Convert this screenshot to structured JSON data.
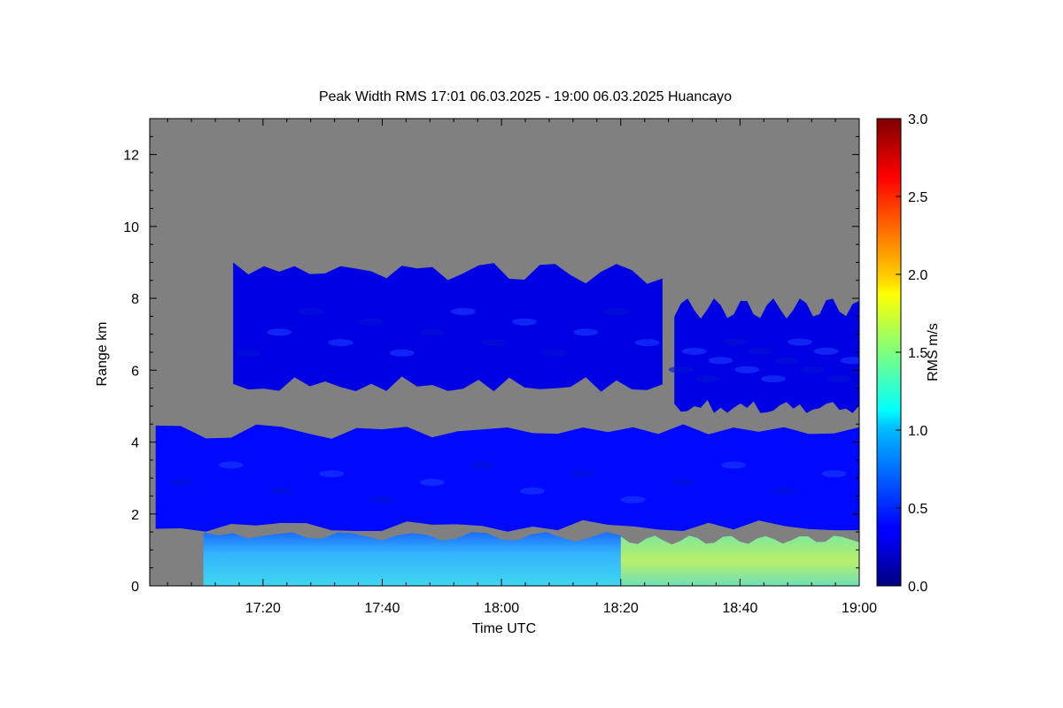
{
  "chart_data": {
    "type": "heatmap",
    "title": "Peak Width RMS   17:01 06.03.2025 - 19:00 06.03.2025 Huancayo",
    "xlabel": "Time UTC",
    "ylabel": "Range km",
    "colorbar_label": "RMS m/s",
    "x_ticks": [
      "17:20",
      "17:40",
      "18:00",
      "18:20",
      "18:40",
      "19:00"
    ],
    "x_tick_minutes": [
      20,
      40,
      60,
      80,
      100,
      120
    ],
    "xlim_minutes_after_1700": [
      1,
      120
    ],
    "y_ticks": [
      0,
      2,
      4,
      6,
      8,
      10,
      12
    ],
    "ylim": [
      0,
      13
    ],
    "colorbar_ticks": [
      "0.0",
      "0.5",
      "1.0",
      "1.5",
      "2.0",
      "2.5",
      "3.0"
    ],
    "clim": [
      0,
      3
    ],
    "colormap": "jet",
    "no_data_color": "#808080",
    "regions": [
      {
        "name": "upper-cloud-layer-left",
        "time_min": [
          15,
          87
        ],
        "range_km": [
          5.4,
          9.0
        ],
        "rms_typical": 0.3
      },
      {
        "name": "upper-cloud-layer-right",
        "time_min": [
          89,
          120
        ],
        "range_km": [
          4.8,
          8.0
        ],
        "rms_typical": 0.3
      },
      {
        "name": "mid-layer-boundary",
        "time_min": [
          2,
          120
        ],
        "range_km": [
          1.5,
          4.5
        ],
        "rms_typical": 0.4
      },
      {
        "name": "low-layer-turbulence",
        "time_min": [
          10,
          80
        ],
        "range_km": [
          0,
          1.5
        ],
        "rms_typical": 0.8
      },
      {
        "name": "low-layer-strong",
        "time_min": [
          80,
          120
        ],
        "range_km": [
          0,
          1.4
        ],
        "rms_typical": 1.2
      }
    ]
  }
}
